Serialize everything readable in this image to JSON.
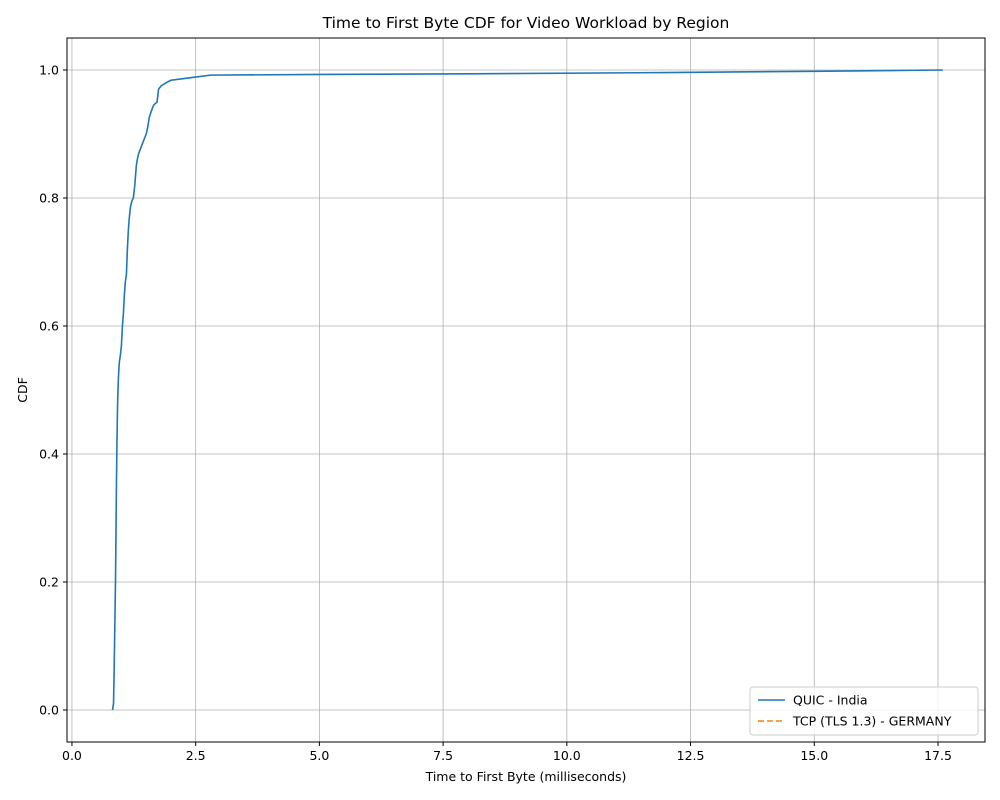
{
  "chart_data": {
    "type": "line",
    "title": "Time to First Byte CDF for Video Workload by Region",
    "xlabel": "Time to First Byte (milliseconds)",
    "ylabel": "CDF",
    "xlim": [
      -0.1,
      18.45
    ],
    "ylim": [
      -0.05,
      1.05
    ],
    "xticks": [
      0.0,
      2.5,
      5.0,
      7.5,
      10.0,
      12.5,
      15.0,
      17.5
    ],
    "xtick_labels": [
      "0.0",
      "2.5",
      "5.0",
      "7.5",
      "10.0",
      "12.5",
      "15.0",
      "17.5"
    ],
    "yticks": [
      0.0,
      0.2,
      0.4,
      0.6,
      0.8,
      1.0
    ],
    "ytick_labels": [
      "0.0",
      "0.2",
      "0.4",
      "0.6",
      "0.8",
      "1.0"
    ],
    "grid": true,
    "legend_position": "lower-right",
    "series": [
      {
        "name": "QUIC - India",
        "color": "#1f77b4",
        "dash": "solid",
        "x": [
          0.82,
          0.84,
          0.85,
          0.86,
          0.87,
          0.88,
          0.89,
          0.9,
          0.91,
          0.92,
          0.93,
          0.94,
          0.95,
          0.96,
          0.98,
          1.0,
          1.02,
          1.04,
          1.06,
          1.08,
          1.1,
          1.12,
          1.14,
          1.16,
          1.18,
          1.21,
          1.24,
          1.27,
          1.3,
          1.32,
          1.35,
          1.4,
          1.45,
          1.5,
          1.53,
          1.56,
          1.6,
          1.65,
          1.72,
          1.75,
          1.8,
          1.9,
          2.0,
          2.2,
          2.5,
          2.8,
          5.0,
          8.0,
          12.0,
          15.0,
          17.6
        ],
        "y": [
          0.0,
          0.01,
          0.05,
          0.1,
          0.15,
          0.2,
          0.28,
          0.36,
          0.42,
          0.47,
          0.5,
          0.52,
          0.535,
          0.545,
          0.555,
          0.57,
          0.6,
          0.62,
          0.65,
          0.67,
          0.68,
          0.72,
          0.75,
          0.77,
          0.785,
          0.795,
          0.8,
          0.82,
          0.85,
          0.86,
          0.87,
          0.88,
          0.89,
          0.9,
          0.91,
          0.925,
          0.935,
          0.945,
          0.95,
          0.97,
          0.975,
          0.98,
          0.984,
          0.986,
          0.989,
          0.992,
          0.993,
          0.994,
          0.996,
          0.998,
          1.0
        ]
      },
      {
        "name": "TCP (TLS 1.3) - GERMANY",
        "color": "#ff7f0e",
        "dash": "dashed",
        "x": [],
        "y": []
      }
    ]
  }
}
